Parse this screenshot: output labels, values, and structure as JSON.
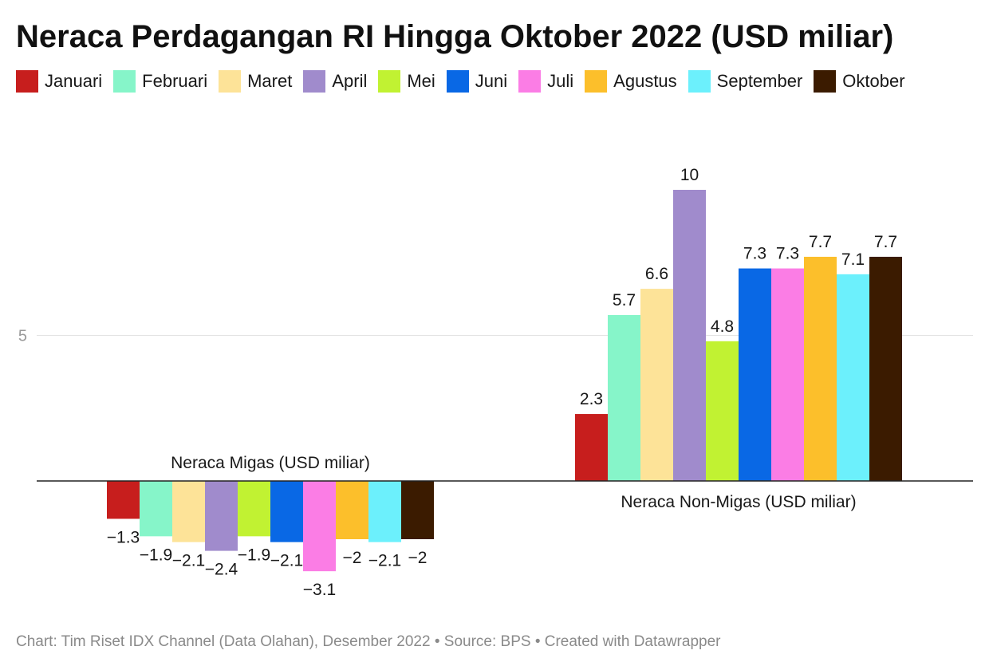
{
  "title": "Neraca Perdagangan RI Hingga Oktober 2022 (USD miliar)",
  "footer": "Chart: Tim Riset IDX Channel (Data Olahan), Desember 2022 • Source: BPS • Created with Datawrapper",
  "chart_data": {
    "type": "bar",
    "title": "Neraca Perdagangan RI Hingga Oktober 2022 (USD miliar)",
    "categories": [
      "Neraca Migas (USD miliar)",
      "Neraca Non-Migas (USD miliar)"
    ],
    "series": [
      {
        "name": "Januari",
        "color": "#c71e1d",
        "values": [
          -1.3,
          2.3
        ]
      },
      {
        "name": "Februari",
        "color": "#86f5c9",
        "values": [
          -1.9,
          5.7
        ]
      },
      {
        "name": "Maret",
        "color": "#fde398",
        "values": [
          -2.1,
          6.6
        ]
      },
      {
        "name": "April",
        "color": "#a08bcc",
        "values": [
          -2.4,
          10
        ]
      },
      {
        "name": "Mei",
        "color": "#c1f232",
        "values": [
          -1.9,
          4.8
        ]
      },
      {
        "name": "Juni",
        "color": "#0968e5",
        "values": [
          -2.1,
          7.3
        ]
      },
      {
        "name": "Juli",
        "color": "#fb7de5",
        "values": [
          -3.1,
          7.3
        ]
      },
      {
        "name": "Agustus",
        "color": "#fcbf2b",
        "values": [
          -2,
          7.7
        ]
      },
      {
        "name": "September",
        "color": "#6cf0fc",
        "values": [
          -2.1,
          7.1
        ]
      },
      {
        "name": "Oktober",
        "color": "#3b1b00",
        "values": [
          -2,
          7.7
        ]
      }
    ],
    "value_labels": [
      [
        "−1.3",
        "2.3"
      ],
      [
        "−1.9",
        "5.7"
      ],
      [
        "−2.1",
        "6.6"
      ],
      [
        "−2.4",
        "10"
      ],
      [
        "−1.9",
        "4.8"
      ],
      [
        "−2.1",
        "7.3"
      ],
      [
        "−3.1",
        "7.3"
      ],
      [
        "−2",
        "7.7"
      ],
      [
        "−2.1",
        "7.1"
      ],
      [
        "−2",
        "7.7"
      ]
    ],
    "yticks": [
      5
    ],
    "ylim": [
      -3.1,
      10
    ],
    "grid": true,
    "legend_position": "top-left"
  }
}
